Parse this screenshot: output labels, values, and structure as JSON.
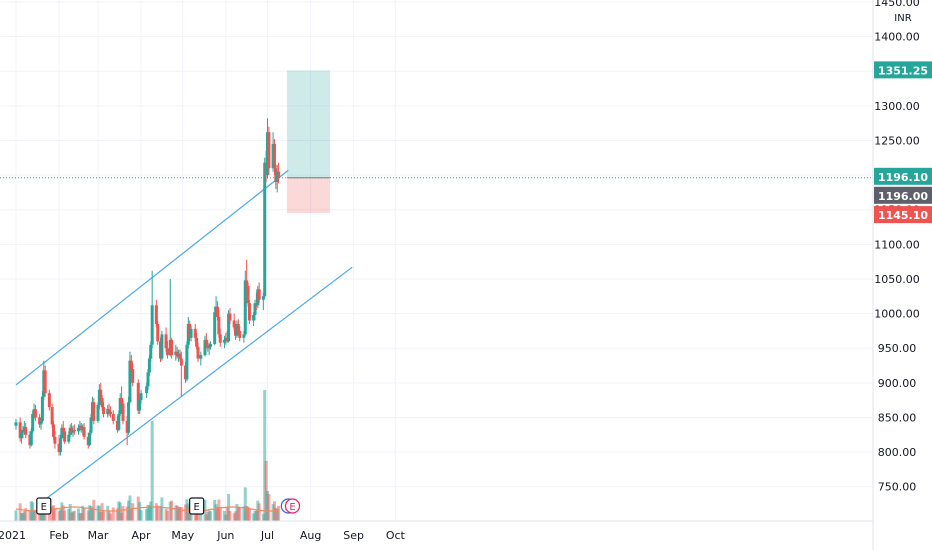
{
  "chart_data": {
    "type": "candlestick",
    "title": "",
    "currency": "INR",
    "ylim": [
      725,
      1450
    ],
    "y_ticks": [
      "1450.00",
      "1400.00",
      "1350.00",
      "1300.00",
      "1250.00",
      "1200.00",
      "1150.00",
      "1100.00",
      "1050.00",
      "1000.00",
      "950.00",
      "900.00",
      "850.00",
      "800.00",
      "750.00"
    ],
    "x_ticks": [
      "2021",
      "Feb",
      "Mar",
      "Apr",
      "May",
      "Jun",
      "Jul",
      "Aug",
      "Sep",
      "Oct"
    ],
    "last_price": 1196.1,
    "price_labels": [
      {
        "value": 1351.25,
        "text": "1351.25",
        "color": "#26a69a"
      },
      {
        "value": 1196.1,
        "text": "1196.10",
        "color": "#26a69a"
      },
      {
        "value": 1196.0,
        "text": "1196.00",
        "color": "#5d606b"
      },
      {
        "value": 1145.1,
        "text": "1145.10",
        "color": "#ef5350"
      }
    ],
    "position": {
      "entry": 1196.1,
      "target": 1351.25,
      "stop": 1145.1,
      "start_date": "2021-07-15",
      "end_date": "2021-08-15"
    },
    "channel": [
      {
        "points": [
          [
            "2021-01-01",
            897
          ],
          [
            "2021-07-16",
            1207
          ]
        ]
      },
      {
        "points": [
          [
            "2021-01-21",
            730
          ],
          [
            "2021-08-31",
            1067
          ]
        ]
      }
    ],
    "events": [
      {
        "date": "2021-01-21",
        "label": "E"
      },
      {
        "date": "2021-05-11",
        "label": "E"
      }
    ],
    "upcoming_events": [
      {
        "date": "2021-07-16",
        "label": "D",
        "color": "#2962ff"
      },
      {
        "date": "2021-07-19",
        "label": "E",
        "color": "#e91e63"
      }
    ],
    "candles": [
      [
        "2021-01-01",
        838,
        848,
        832,
        843
      ],
      [
        "2021-01-04",
        843,
        850,
        815,
        820
      ],
      [
        "2021-01-05",
        820,
        832,
        812,
        828
      ],
      [
        "2021-01-06",
        828,
        838,
        820,
        832
      ],
      [
        "2021-01-07",
        832,
        845,
        825,
        836
      ],
      [
        "2021-01-08",
        836,
        842,
        820,
        825
      ],
      [
        "2021-01-11",
        825,
        830,
        805,
        810
      ],
      [
        "2021-01-12",
        810,
        835,
        808,
        830
      ],
      [
        "2021-01-13",
        830,
        860,
        828,
        855
      ],
      [
        "2021-01-14",
        855,
        870,
        848,
        862
      ],
      [
        "2021-01-15",
        862,
        868,
        845,
        850
      ],
      [
        "2021-01-18",
        850,
        855,
        835,
        840
      ],
      [
        "2021-01-19",
        840,
        850,
        832,
        845
      ],
      [
        "2021-01-20",
        845,
        888,
        842,
        880
      ],
      [
        "2021-01-21",
        880,
        932,
        875,
        918
      ],
      [
        "2021-01-22",
        918,
        925,
        880,
        885
      ],
      [
        "2021-01-25",
        885,
        890,
        860,
        865
      ],
      [
        "2021-01-27",
        865,
        870,
        835,
        840
      ],
      [
        "2021-01-28",
        840,
        845,
        818,
        822
      ],
      [
        "2021-01-29",
        822,
        830,
        805,
        812
      ],
      [
        "2021-02-01",
        812,
        825,
        795,
        800
      ],
      [
        "2021-02-02",
        800,
        825,
        795,
        820
      ],
      [
        "2021-02-03",
        820,
        840,
        818,
        835
      ],
      [
        "2021-02-04",
        835,
        845,
        825,
        830
      ],
      [
        "2021-02-05",
        830,
        835,
        812,
        815
      ],
      [
        "2021-02-08",
        815,
        830,
        812,
        825
      ],
      [
        "2021-02-09",
        825,
        840,
        822,
        835
      ],
      [
        "2021-02-10",
        835,
        842,
        825,
        828
      ],
      [
        "2021-02-11",
        828,
        838,
        822,
        832
      ],
      [
        "2021-02-12",
        832,
        840,
        825,
        830
      ],
      [
        "2021-02-15",
        830,
        840,
        825,
        835
      ],
      [
        "2021-02-16",
        835,
        845,
        830,
        838
      ],
      [
        "2021-02-17",
        838,
        842,
        828,
        832
      ],
      [
        "2021-02-18",
        832,
        840,
        825,
        836
      ],
      [
        "2021-02-19",
        836,
        842,
        818,
        822
      ],
      [
        "2021-02-22",
        822,
        828,
        805,
        810
      ],
      [
        "2021-02-23",
        810,
        832,
        808,
        828
      ],
      [
        "2021-02-24",
        828,
        855,
        825,
        850
      ],
      [
        "2021-02-25",
        850,
        880,
        845,
        872
      ],
      [
        "2021-02-26",
        872,
        878,
        840,
        845
      ],
      [
        "2021-03-01",
        845,
        872,
        842,
        868
      ],
      [
        "2021-03-02",
        868,
        898,
        862,
        890
      ],
      [
        "2021-03-03",
        890,
        900,
        872,
        878
      ],
      [
        "2021-03-04",
        878,
        882,
        860,
        865
      ],
      [
        "2021-03-05",
        865,
        872,
        850,
        855
      ],
      [
        "2021-03-08",
        855,
        868,
        850,
        862
      ],
      [
        "2021-03-09",
        862,
        870,
        852,
        858
      ],
      [
        "2021-03-10",
        858,
        866,
        850,
        855
      ],
      [
        "2021-03-12",
        855,
        860,
        840,
        845
      ],
      [
        "2021-03-15",
        845,
        852,
        828,
        832
      ],
      [
        "2021-03-16",
        832,
        860,
        830,
        855
      ],
      [
        "2021-03-17",
        855,
        885,
        852,
        878
      ],
      [
        "2021-03-18",
        878,
        895,
        865,
        870
      ],
      [
        "2021-03-19",
        870,
        875,
        840,
        845
      ],
      [
        "2021-03-22",
        845,
        852,
        810,
        828
      ],
      [
        "2021-03-23",
        828,
        880,
        825,
        872
      ],
      [
        "2021-03-24",
        872,
        945,
        870,
        932
      ],
      [
        "2021-03-25",
        932,
        940,
        915,
        920
      ],
      [
        "2021-03-26",
        920,
        928,
        895,
        900
      ],
      [
        "2021-03-30",
        900,
        905,
        855,
        860
      ],
      [
        "2021-03-31",
        860,
        880,
        855,
        875
      ],
      [
        "2021-04-01",
        875,
        890,
        870,
        885
      ],
      [
        "2021-04-05",
        885,
        900,
        878,
        895
      ],
      [
        "2021-04-06",
        895,
        920,
        890,
        915
      ],
      [
        "2021-04-07",
        915,
        940,
        910,
        935
      ],
      [
        "2021-04-08",
        935,
        960,
        930,
        955
      ],
      [
        "2021-04-09",
        955,
        1062,
        950,
        1012
      ],
      [
        "2021-04-12",
        1012,
        1020,
        980,
        985
      ],
      [
        "2021-04-13",
        985,
        990,
        955,
        960
      ],
      [
        "2021-04-15",
        960,
        965,
        930,
        935
      ],
      [
        "2021-04-16",
        935,
        975,
        932,
        970
      ],
      [
        "2021-04-19",
        970,
        980,
        945,
        950
      ],
      [
        "2021-04-20",
        950,
        960,
        935,
        940
      ],
      [
        "2021-04-22",
        940,
        1050,
        938,
        962
      ],
      [
        "2021-04-23",
        962,
        965,
        935,
        940
      ],
      [
        "2021-04-26",
        940,
        955,
        932,
        945
      ],
      [
        "2021-04-27",
        945,
        952,
        935,
        938
      ],
      [
        "2021-04-28",
        938,
        948,
        930,
        942
      ],
      [
        "2021-04-29",
        942,
        948,
        932,
        935
      ],
      [
        "2021-04-30",
        935,
        945,
        880,
        925
      ],
      [
        "2021-05-03",
        925,
        930,
        900,
        905
      ],
      [
        "2021-05-04",
        905,
        960,
        902,
        955
      ],
      [
        "2021-05-05",
        955,
        995,
        950,
        985
      ],
      [
        "2021-05-06",
        985,
        990,
        960,
        965
      ],
      [
        "2021-05-07",
        965,
        982,
        960,
        978
      ],
      [
        "2021-05-10",
        978,
        985,
        960,
        965
      ],
      [
        "2021-05-11",
        965,
        972,
        948,
        952
      ],
      [
        "2021-05-12",
        952,
        958,
        930,
        935
      ],
      [
        "2021-05-14",
        935,
        945,
        925,
        940
      ],
      [
        "2021-05-17",
        940,
        968,
        938,
        962
      ],
      [
        "2021-05-18",
        962,
        972,
        950,
        955
      ],
      [
        "2021-05-19",
        955,
        962,
        945,
        950
      ],
      [
        "2021-05-20",
        950,
        958,
        940,
        952
      ],
      [
        "2021-05-21",
        952,
        960,
        948,
        956
      ],
      [
        "2021-05-24",
        956,
        1010,
        954,
        1002
      ],
      [
        "2021-05-25",
        1002,
        1025,
        995,
        1010
      ],
      [
        "2021-05-26",
        1010,
        1018,
        990,
        995
      ],
      [
        "2021-05-27",
        995,
        1005,
        965,
        970
      ],
      [
        "2021-05-28",
        970,
        978,
        952,
        958
      ],
      [
        "2021-05-31",
        958,
        968,
        950,
        962
      ],
      [
        "2021-06-01",
        962,
        972,
        955,
        965
      ],
      [
        "2021-06-02",
        965,
        975,
        958,
        960
      ],
      [
        "2021-06-03",
        960,
        1005,
        958,
        1000
      ],
      [
        "2021-06-04",
        1000,
        1008,
        985,
        990
      ],
      [
        "2021-06-07",
        990,
        1000,
        975,
        980
      ],
      [
        "2021-06-08",
        980,
        985,
        962,
        968
      ],
      [
        "2021-06-09",
        968,
        990,
        965,
        985
      ],
      [
        "2021-06-10",
        985,
        992,
        972,
        975
      ],
      [
        "2021-06-11",
        975,
        982,
        960,
        965
      ],
      [
        "2021-06-14",
        965,
        975,
        958,
        970
      ],
      [
        "2021-06-15",
        970,
        1062,
        968,
        1048
      ],
      [
        "2021-06-16",
        1048,
        1078,
        1035,
        1040
      ],
      [
        "2021-06-17",
        1040,
        1045,
        1010,
        1015
      ],
      [
        "2021-06-18",
        1015,
        1020,
        985,
        990
      ],
      [
        "2021-06-21",
        990,
        1002,
        982,
        998
      ],
      [
        "2021-06-22",
        998,
        1020,
        990,
        1015
      ],
      [
        "2021-06-23",
        1015,
        1030,
        1005,
        1012
      ],
      [
        "2021-06-24",
        1012,
        1040,
        1008,
        1035
      ],
      [
        "2021-06-25",
        1035,
        1045,
        1015,
        1020
      ],
      [
        "2021-06-28",
        1020,
        1030,
        1005,
        1025
      ],
      [
        "2021-06-29",
        1025,
        1225,
        1022,
        1218
      ],
      [
        "2021-06-30",
        1218,
        1235,
        1190,
        1200
      ],
      [
        "2021-07-01",
        1200,
        1282,
        1195,
        1262
      ],
      [
        "2021-07-02",
        1262,
        1270,
        1200,
        1210
      ],
      [
        "2021-07-05",
        1210,
        1262,
        1205,
        1245
      ],
      [
        "2021-07-06",
        1245,
        1252,
        1200,
        1210
      ],
      [
        "2021-07-07",
        1210,
        1215,
        1180,
        1190
      ],
      [
        "2021-07-08",
        1190,
        1215,
        1175,
        1205
      ],
      [
        "2021-07-09",
        1205,
        1218,
        1188,
        1196
      ]
    ]
  }
}
